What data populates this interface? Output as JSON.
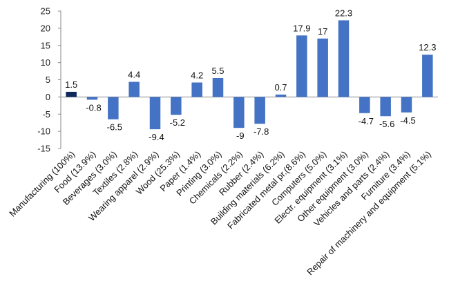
{
  "chart_data": {
    "type": "bar",
    "title": "",
    "xlabel": "",
    "ylabel": "",
    "ylim": [
      -15,
      25
    ],
    "yticks": [
      -15,
      -10,
      -5,
      0,
      5,
      10,
      15,
      20,
      25
    ],
    "grid": false,
    "legend": "none",
    "colors": {
      "highlight": "#10295c",
      "bar": "#4472c4",
      "axis": "#888888"
    },
    "categories": [
      "Manufacturing (100%)",
      "Food (13.9%)",
      "Beverages (3.0%)",
      "Textiles (2.8%)",
      "Wearing apparel (2.9%)",
      "Wood (25.3%)",
      "Paper (1.4%)",
      "Printing (3.0%)",
      "Chemicals (2.2%)",
      "Rubber (2.4%)",
      "Building materials (6.2%)",
      "Fabricated metal pr.(8.6%)",
      "Computers (5.0%)",
      "Electr. equipment (3.1%)",
      "Other equipment (3.0%)",
      "Vehicles and parts (2.4%)",
      "Furniture (3.4%)",
      "Repair of machinery and equipment (5.1%)"
    ],
    "values": [
      1.5,
      -0.8,
      -6.5,
      4.4,
      -9.4,
      -5.2,
      4.2,
      5.5,
      -9,
      -7.8,
      0.7,
      17.9,
      17,
      22.3,
      -4.7,
      -5.6,
      -4.5,
      12.3
    ],
    "data_labels": [
      "1.5",
      "-0.8",
      "-6.5",
      "4.4",
      "-9.4",
      "-5.2",
      "4.2",
      "5.5",
      "-9",
      "-7.8",
      "0.7",
      "17.9",
      "17",
      "22.3",
      "-4.7",
      "-5.6",
      "-4.5",
      "12.3"
    ]
  }
}
